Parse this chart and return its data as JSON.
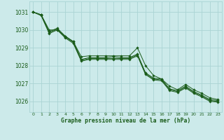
{
  "title": "Graphe pression niveau de la mer (hPa)",
  "bg_color": "#cceaea",
  "grid_color": "#aad4d4",
  "line_color": "#1a5c1a",
  "marker_color": "#1a5c1a",
  "xlim": [
    -0.5,
    23.5
  ],
  "ylim": [
    1025.4,
    1031.6
  ],
  "yticks": [
    1026,
    1027,
    1028,
    1029,
    1030,
    1031
  ],
  "xticks": [
    0,
    1,
    2,
    3,
    4,
    5,
    6,
    7,
    8,
    9,
    10,
    11,
    12,
    13,
    14,
    15,
    16,
    17,
    18,
    19,
    20,
    21,
    22,
    23
  ],
  "series": [
    [
      1031.0,
      1030.85,
      1029.9,
      1030.1,
      1029.65,
      1029.35,
      1028.35,
      1028.45,
      1028.45,
      1028.45,
      1028.5,
      1028.45,
      1028.45,
      1028.65,
      1027.6,
      1027.3,
      1027.25,
      1026.7,
      1026.6,
      1026.85,
      1026.55,
      1026.35,
      1026.1,
      1026.05
    ],
    [
      1031.0,
      1030.85,
      1030.0,
      1030.0,
      1029.65,
      1029.35,
      1028.5,
      1028.55,
      1028.55,
      1028.55,
      1028.55,
      1028.55,
      1028.55,
      1029.0,
      1028.0,
      1027.45,
      1027.25,
      1026.85,
      1026.65,
      1026.95,
      1026.65,
      1026.45,
      1026.2,
      1026.1
    ],
    [
      1031.0,
      1030.85,
      1029.85,
      1030.05,
      1029.6,
      1029.3,
      1028.3,
      1028.4,
      1028.4,
      1028.4,
      1028.4,
      1028.4,
      1028.4,
      1028.6,
      1027.55,
      1027.25,
      1027.2,
      1026.65,
      1026.55,
      1026.8,
      1026.5,
      1026.3,
      1026.05,
      1026.0
    ],
    [
      1031.0,
      1030.8,
      1029.8,
      1030.0,
      1029.55,
      1029.25,
      1028.25,
      1028.35,
      1028.35,
      1028.35,
      1028.35,
      1028.35,
      1028.35,
      1028.55,
      1027.5,
      1027.2,
      1027.15,
      1026.6,
      1026.5,
      1026.75,
      1026.45,
      1026.25,
      1026.0,
      1025.95
    ]
  ]
}
